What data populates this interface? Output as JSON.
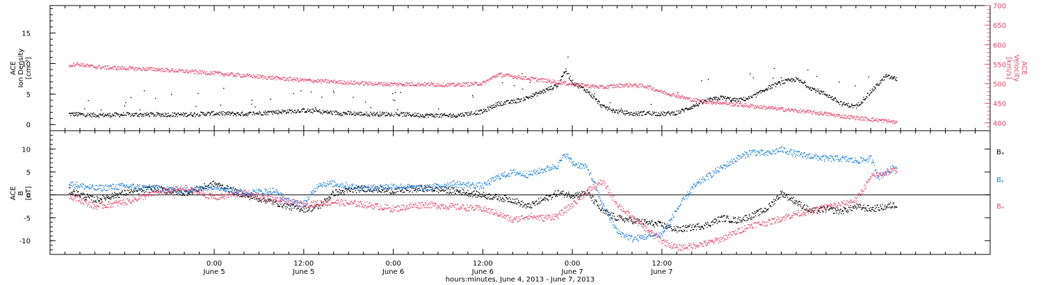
{
  "colors": {
    "black": "#000000",
    "pink": "#e8456e",
    "blue": "#1a7fe0"
  },
  "chart_data": [
    {
      "type": "scatter",
      "panel": "top",
      "ylabel_left": [
        "ACE",
        "Ion Density",
        "[cm⁻³]"
      ],
      "ylabel_right": [
        "ACE",
        "Velocity",
        "[km/s]"
      ],
      "ylim_left": [
        -1,
        19.5
      ],
      "yticks_left": [
        0,
        5,
        10,
        15
      ],
      "ylim_right": [
        380,
        700
      ],
      "yticks_right": [
        400,
        450,
        500,
        550,
        600,
        650,
        700
      ],
      "series": [
        {
          "axis": "left",
          "color": "black",
          "points": [
            [
              -19.5,
              1.8
            ],
            [
              -17.5,
              1.7
            ],
            [
              -15.5,
              1.6
            ],
            [
              -12,
              1.7
            ],
            [
              -8,
              1.7
            ],
            [
              -4,
              1.7
            ],
            [
              0,
              1.9
            ],
            [
              4,
              1.8
            ],
            [
              8,
              2.1
            ],
            [
              12,
              2.4
            ],
            [
              16,
              2.0
            ],
            [
              20,
              1.8
            ],
            [
              24,
              1.8
            ],
            [
              28,
              1.6
            ],
            [
              32,
              1.5
            ],
            [
              36,
              2.2
            ],
            [
              38,
              3.5
            ],
            [
              40,
              3.8
            ],
            [
              42,
              4.5
            ],
            [
              44,
              5.5
            ],
            [
              46,
              6.5
            ],
            [
              47,
              9.0
            ],
            [
              48,
              7.0
            ],
            [
              50,
              5.5
            ],
            [
              52,
              3.0
            ],
            [
              54,
              2.2
            ],
            [
              56,
              1.8
            ],
            [
              58,
              2.0
            ],
            [
              60,
              1.8
            ],
            [
              62,
              2.0
            ],
            [
              64,
              3.0
            ],
            [
              66,
              4.0
            ],
            [
              68,
              4.5
            ],
            [
              70,
              4.0
            ],
            [
              72,
              4.5
            ],
            [
              74,
              6.0
            ],
            [
              76,
              7.0
            ],
            [
              78,
              7.5
            ],
            [
              80,
              6.0
            ],
            [
              82,
              5.0
            ],
            [
              84,
              3.5
            ],
            [
              86,
              3.0
            ],
            [
              88,
              5.5
            ],
            [
              90,
              8.0
            ],
            [
              91.5,
              7.5
            ]
          ]
        },
        {
          "axis": "right",
          "color": "pink",
          "points": [
            [
              -19.5,
              548
            ],
            [
              -18.5,
              552
            ],
            [
              -16.5,
              545
            ],
            [
              -14,
              542
            ],
            [
              -11,
              540
            ],
            [
              -8,
              538
            ],
            [
              -4,
              533
            ],
            [
              0,
              528
            ],
            [
              4,
              522
            ],
            [
              8,
              516
            ],
            [
              12,
              510
            ],
            [
              16,
              506
            ],
            [
              20,
              502
            ],
            [
              24,
              500
            ],
            [
              28,
              500
            ],
            [
              32,
              498
            ],
            [
              36,
              502
            ],
            [
              38,
              525
            ],
            [
              40,
              520
            ],
            [
              42,
              515
            ],
            [
              44,
              510
            ],
            [
              46,
              505
            ],
            [
              48,
              500
            ],
            [
              50,
              496
            ],
            [
              52,
              492
            ],
            [
              54,
              496
            ],
            [
              56,
              498
            ],
            [
              58,
              494
            ],
            [
              60,
              480
            ],
            [
              62,
              470
            ],
            [
              64,
              460
            ],
            [
              66,
              455
            ],
            [
              68,
              452
            ],
            [
              70,
              448
            ],
            [
              72,
              444
            ],
            [
              74,
              440
            ],
            [
              76,
              436
            ],
            [
              78,
              432
            ],
            [
              80,
              428
            ],
            [
              82,
              424
            ],
            [
              84,
              418
            ],
            [
              86,
              414
            ],
            [
              88,
              410
            ],
            [
              90,
              406
            ],
            [
              91.5,
              402
            ]
          ]
        }
      ]
    },
    {
      "type": "scatter",
      "panel": "bottom",
      "ylabel_left": [
        "ACE",
        "B",
        "[nT]"
      ],
      "ylim": [
        -13,
        14
      ],
      "yticks": [
        -10,
        -5,
        0,
        5,
        10
      ],
      "legend": [
        "Bₓ",
        "Bᵧ",
        "Bₔ"
      ],
      "series": [
        {
          "name": "Bₓ",
          "color": "black",
          "points": [
            [
              -19.5,
              1.0
            ],
            [
              -16,
              -1.0
            ],
            [
              -12,
              0.5
            ],
            [
              -8,
              1.5
            ],
            [
              -4,
              0.5
            ],
            [
              0,
              2.5
            ],
            [
              4,
              0.0
            ],
            [
              8,
              -1.5
            ],
            [
              10,
              -2.5
            ],
            [
              12,
              -3.0
            ],
            [
              14,
              -2.5
            ],
            [
              16,
              0.5
            ],
            [
              20,
              1.5
            ],
            [
              24,
              1.0
            ],
            [
              28,
              1.5
            ],
            [
              32,
              1.0
            ],
            [
              36,
              0.0
            ],
            [
              40,
              -1.0
            ],
            [
              42,
              -2.5
            ],
            [
              44,
              -1.0
            ],
            [
              46,
              0.5
            ],
            [
              48,
              0.0
            ],
            [
              50,
              0.5
            ],
            [
              52,
              -3.5
            ],
            [
              54,
              -5.0
            ],
            [
              56,
              -5.5
            ],
            [
              58,
              -6.0
            ],
            [
              60,
              -6.5
            ],
            [
              62,
              -7.5
            ],
            [
              64,
              -7.0
            ],
            [
              66,
              -6.5
            ],
            [
              68,
              -5.0
            ],
            [
              70,
              -5.5
            ],
            [
              72,
              -4.5
            ],
            [
              74,
              -3.0
            ],
            [
              76,
              0.5
            ],
            [
              78,
              -1.5
            ],
            [
              80,
              -3.5
            ],
            [
              82,
              -3.0
            ],
            [
              84,
              -3.5
            ],
            [
              86,
              -2.5
            ],
            [
              88,
              -3.0
            ],
            [
              90,
              -2.5
            ],
            [
              91.5,
              -2.0
            ]
          ]
        },
        {
          "name": "Bᵧ",
          "color": "blue",
          "points": [
            [
              -19.5,
              2.5
            ],
            [
              -16,
              1.5
            ],
            [
              -12,
              2.0
            ],
            [
              -8,
              1.5
            ],
            [
              -4,
              1.0
            ],
            [
              0,
              2.0
            ],
            [
              4,
              0.5
            ],
            [
              8,
              1.0
            ],
            [
              10,
              -1.5
            ],
            [
              12,
              -2.0
            ],
            [
              14,
              2.5
            ],
            [
              16,
              2.5
            ],
            [
              20,
              1.5
            ],
            [
              24,
              2.0
            ],
            [
              28,
              1.5
            ],
            [
              32,
              2.5
            ],
            [
              36,
              2.0
            ],
            [
              38,
              4.0
            ],
            [
              40,
              5.0
            ],
            [
              42,
              4.5
            ],
            [
              44,
              5.5
            ],
            [
              46,
              6.5
            ],
            [
              47,
              9.0
            ],
            [
              48,
              7.0
            ],
            [
              50,
              6.0
            ],
            [
              52,
              -2.0
            ],
            [
              54,
              -8.0
            ],
            [
              56,
              -9.5
            ],
            [
              58,
              -9.0
            ],
            [
              60,
              -8.5
            ],
            [
              62,
              -3.0
            ],
            [
              64,
              1.5
            ],
            [
              66,
              4.0
            ],
            [
              68,
              6.0
            ],
            [
              70,
              8.0
            ],
            [
              72,
              9.5
            ],
            [
              74,
              9.0
            ],
            [
              76,
              10.0
            ],
            [
              78,
              9.0
            ],
            [
              80,
              8.5
            ],
            [
              82,
              8.0
            ],
            [
              84,
              8.0
            ],
            [
              86,
              7.5
            ],
            [
              88,
              8.0
            ],
            [
              89,
              4.0
            ],
            [
              91.5,
              6.5
            ]
          ]
        },
        {
          "name": "Bₔ",
          "color": "pink",
          "points": [
            [
              -19.5,
              0.0
            ],
            [
              -16,
              -2.5
            ],
            [
              -12,
              -1.5
            ],
            [
              -8,
              0.5
            ],
            [
              -4,
              1.5
            ],
            [
              0,
              -0.5
            ],
            [
              4,
              0.5
            ],
            [
              8,
              -1.0
            ],
            [
              12,
              -2.0
            ],
            [
              16,
              -1.5
            ],
            [
              20,
              -2.0
            ],
            [
              24,
              -3.0
            ],
            [
              28,
              -2.0
            ],
            [
              32,
              -2.5
            ],
            [
              36,
              -3.0
            ],
            [
              38,
              -4.0
            ],
            [
              40,
              -5.5
            ],
            [
              42,
              -4.5
            ],
            [
              44,
              -5.0
            ],
            [
              46,
              -4.5
            ],
            [
              48,
              -2.0
            ],
            [
              50,
              1.0
            ],
            [
              52,
              3.0
            ],
            [
              54,
              -2.0
            ],
            [
              56,
              -5.0
            ],
            [
              58,
              -7.5
            ],
            [
              60,
              -10.0
            ],
            [
              62,
              -11.5
            ],
            [
              64,
              -11.0
            ],
            [
              66,
              -10.5
            ],
            [
              68,
              -9.5
            ],
            [
              70,
              -8.0
            ],
            [
              72,
              -6.5
            ],
            [
              74,
              -6.0
            ],
            [
              76,
              -5.0
            ],
            [
              78,
              -4.0
            ],
            [
              80,
              -3.5
            ],
            [
              82,
              -2.5
            ],
            [
              84,
              -2.0
            ],
            [
              86,
              -1.0
            ],
            [
              88,
              4.0
            ],
            [
              90,
              5.0
            ],
            [
              91.5,
              5.5
            ]
          ]
        }
      ]
    }
  ],
  "xaxis": {
    "label": "hours:minutes, June  4, 2013 - June  7, 2013",
    "xlim_hours": [
      -22,
      104
    ],
    "major_ticks": [
      {
        "hour": 0,
        "time": "0:00",
        "date": "June 5"
      },
      {
        "hour": 12,
        "time": "12:00",
        "date": "June 5"
      },
      {
        "hour": 24,
        "time": "0:00",
        "date": "June 6"
      },
      {
        "hour": 36,
        "time": "12:00",
        "date": "June 6"
      },
      {
        "hour": 48,
        "time": "0:00",
        "date": "June 7"
      },
      {
        "hour": 60,
        "time": "12:00",
        "date": "June 7"
      }
    ],
    "minor_tick_step_hours": 2
  }
}
